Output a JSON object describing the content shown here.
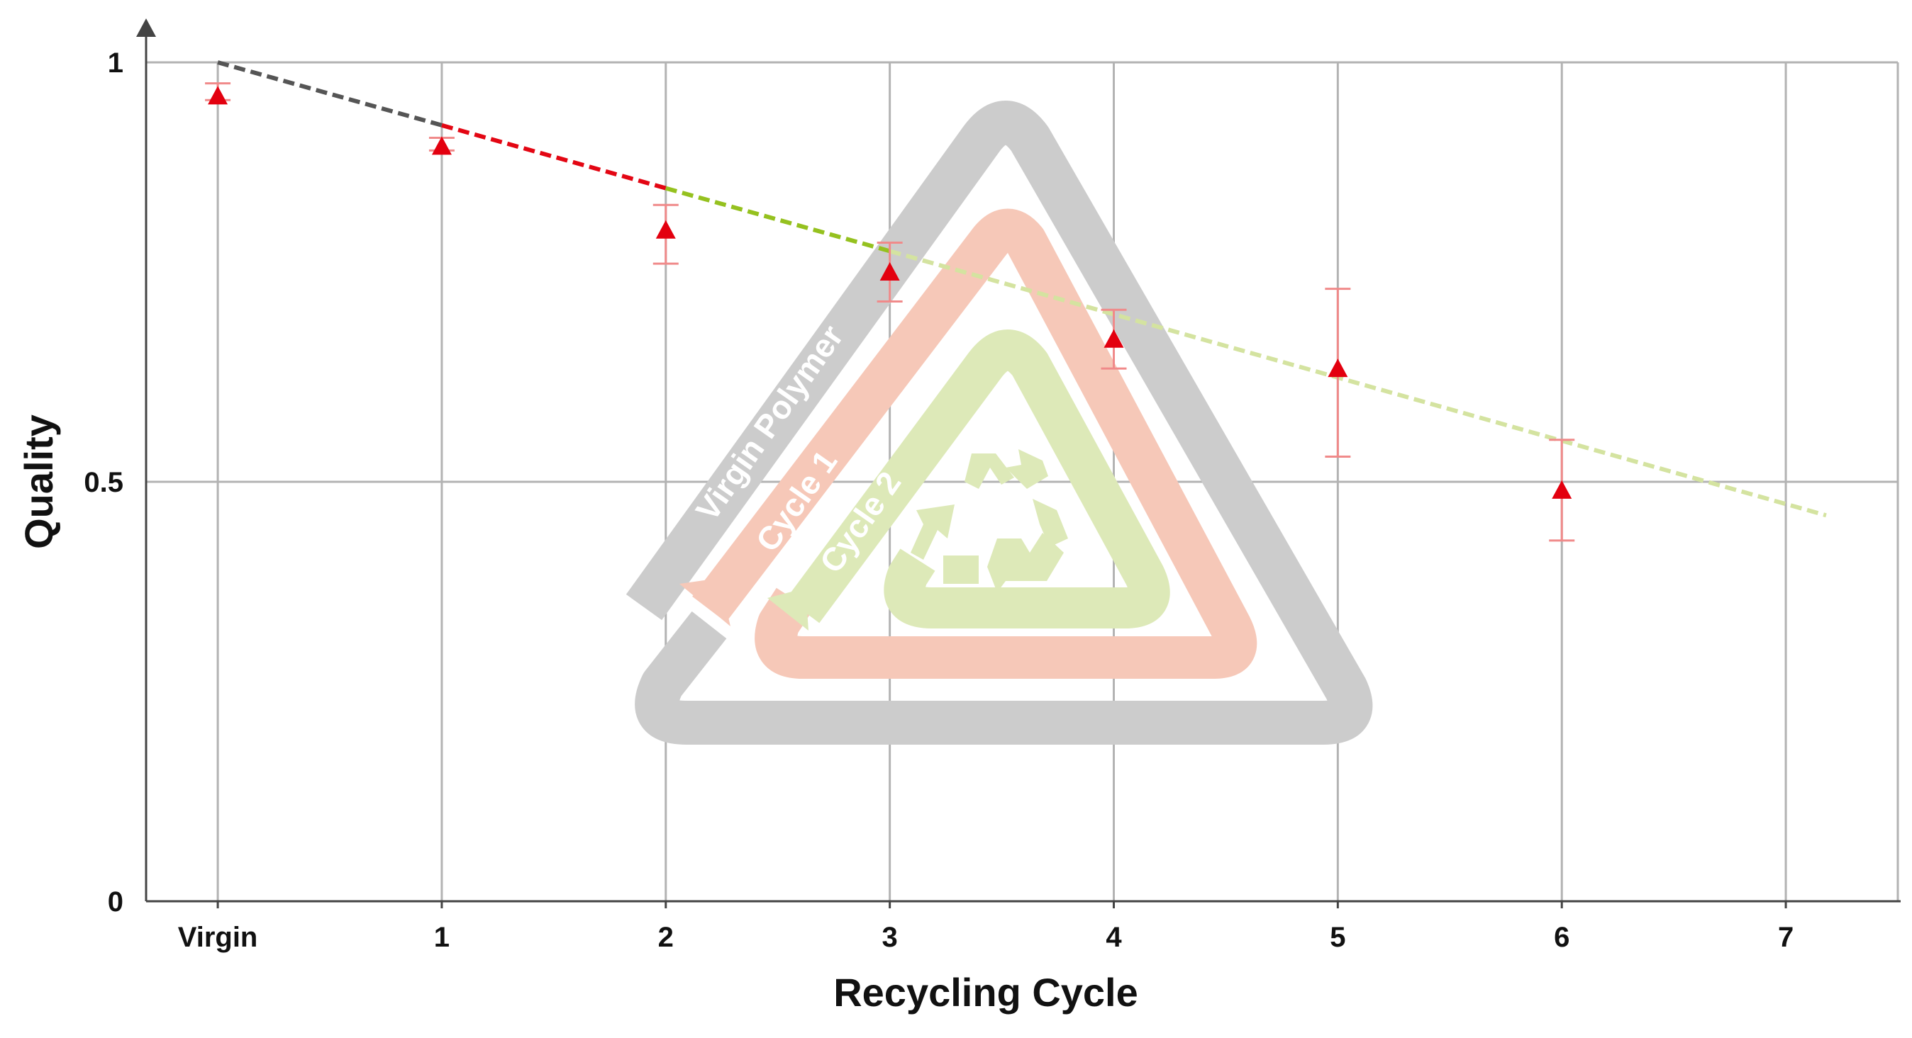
{
  "chart_data": {
    "type": "scatter",
    "title": "",
    "xlabel": "Recycling Cycle",
    "ylabel": "Quality",
    "categories": [
      "Virgin",
      "1",
      "2",
      "3",
      "4",
      "5",
      "6",
      "7"
    ],
    "x": [
      0,
      1,
      2,
      3,
      4,
      5,
      6,
      7
    ],
    "xlim": [
      -0.32,
      7.5
    ],
    "ylim": [
      0,
      1
    ],
    "yticks": [
      {
        "value": 0,
        "label": "0"
      },
      {
        "value": 0.5,
        "label": "0.5"
      },
      {
        "value": 1,
        "label": "1"
      }
    ],
    "grid": true,
    "series": [
      {
        "x": [
          0,
          1,
          2,
          3,
          4,
          5,
          6
        ],
        "values": [
          0.96,
          0.9,
          0.8,
          0.75,
          0.67,
          0.635,
          0.49
        ],
        "error_low": [
          0.955,
          0.895,
          0.76,
          0.715,
          0.635,
          0.53,
          0.43
        ],
        "error_high": [
          0.975,
          0.91,
          0.83,
          0.785,
          0.705,
          0.73,
          0.55
        ],
        "marker": "triangle",
        "color": "#e3000f",
        "error_color": "#f08a8a"
      }
    ],
    "trend_segments": [
      {
        "x": [
          0,
          1
        ],
        "y": [
          1.0,
          0.925
        ],
        "color": "#555555"
      },
      {
        "x": [
          1,
          2
        ],
        "y": [
          0.925,
          0.85
        ],
        "color": "#e30613"
      },
      {
        "x": [
          2,
          3
        ],
        "y": [
          0.85,
          0.775
        ],
        "color": "#95c11f"
      },
      {
        "x": [
          3,
          7.18
        ],
        "y": [
          0.775,
          0.46
        ],
        "color": "#d4e3a0"
      }
    ]
  },
  "diagram": {
    "loops": [
      {
        "label": "Virgin Polymer",
        "color": "#cccccc"
      },
      {
        "label": "Cycle 1",
        "color": "#f6c8b8"
      },
      {
        "label": "Cycle 2",
        "color": "#dde9b8"
      }
    ],
    "icon": "recycle-icon",
    "icon_color": "#dde9b8"
  }
}
